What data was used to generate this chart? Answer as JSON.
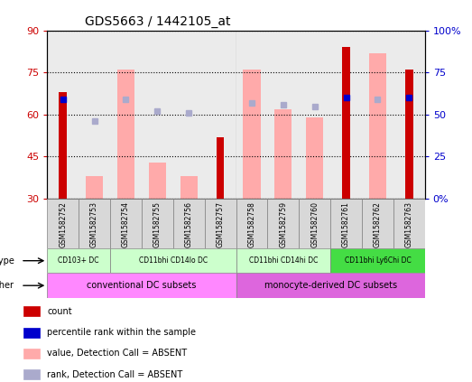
{
  "title": "GDS5663 / 1442105_at",
  "samples": [
    "GSM1582752",
    "GSM1582753",
    "GSM1582754",
    "GSM1582755",
    "GSM1582756",
    "GSM1582757",
    "GSM1582758",
    "GSM1582759",
    "GSM1582760",
    "GSM1582761",
    "GSM1582762",
    "GSM1582763"
  ],
  "count_values": [
    68,
    null,
    null,
    null,
    null,
    52,
    null,
    null,
    null,
    84,
    null,
    76
  ],
  "percentile_rank": [
    59,
    null,
    null,
    null,
    null,
    null,
    null,
    null,
    null,
    60,
    null,
    60
  ],
  "absent_value": [
    null,
    38,
    76,
    43,
    38,
    null,
    76,
    62,
    59,
    null,
    82,
    null
  ],
  "absent_rank": [
    null,
    46,
    59,
    52,
    51,
    null,
    57,
    56,
    55,
    null,
    59,
    null
  ],
  "ylim_left": [
    30,
    90
  ],
  "ylim_right": [
    0,
    100
  ],
  "yticks_left": [
    30,
    45,
    60,
    75,
    90
  ],
  "yticks_right": [
    0,
    25,
    50,
    75,
    100
  ],
  "ytick_labels_right": [
    "0%",
    "25",
    "50",
    "75",
    "100%"
  ],
  "left_color": "#cc0000",
  "right_color": "#0000cc",
  "absent_value_color": "#ffaaaa",
  "absent_rank_color": "#aaaacc",
  "col_bg_color": "#d8d8d8",
  "cell_type_groups": [
    {
      "label": "CD103+ DC",
      "start": 0,
      "end": 1,
      "color": "#ccffcc"
    },
    {
      "label": "CD11bhi CD14lo DC",
      "start": 2,
      "end": 5,
      "color": "#ccffcc"
    },
    {
      "label": "CD11bhi CD14hi DC",
      "start": 6,
      "end": 8,
      "color": "#ccffcc"
    },
    {
      "label": "CD11bhi Ly6Chi DC",
      "start": 9,
      "end": 11,
      "color": "#44dd44"
    }
  ],
  "other_groups": [
    {
      "label": "conventional DC subsets",
      "start": 0,
      "end": 5,
      "color": "#ff88ff"
    },
    {
      "label": "monocyte-derived DC subsets",
      "start": 6,
      "end": 11,
      "color": "#dd66dd"
    }
  ],
  "legend_items": [
    {
      "label": "count",
      "color": "#cc0000"
    },
    {
      "label": "percentile rank within the sample",
      "color": "#0000cc"
    },
    {
      "label": "value, Detection Call = ABSENT",
      "color": "#ffaaaa"
    },
    {
      "label": "rank, Detection Call = ABSENT",
      "color": "#aaaacc"
    }
  ]
}
